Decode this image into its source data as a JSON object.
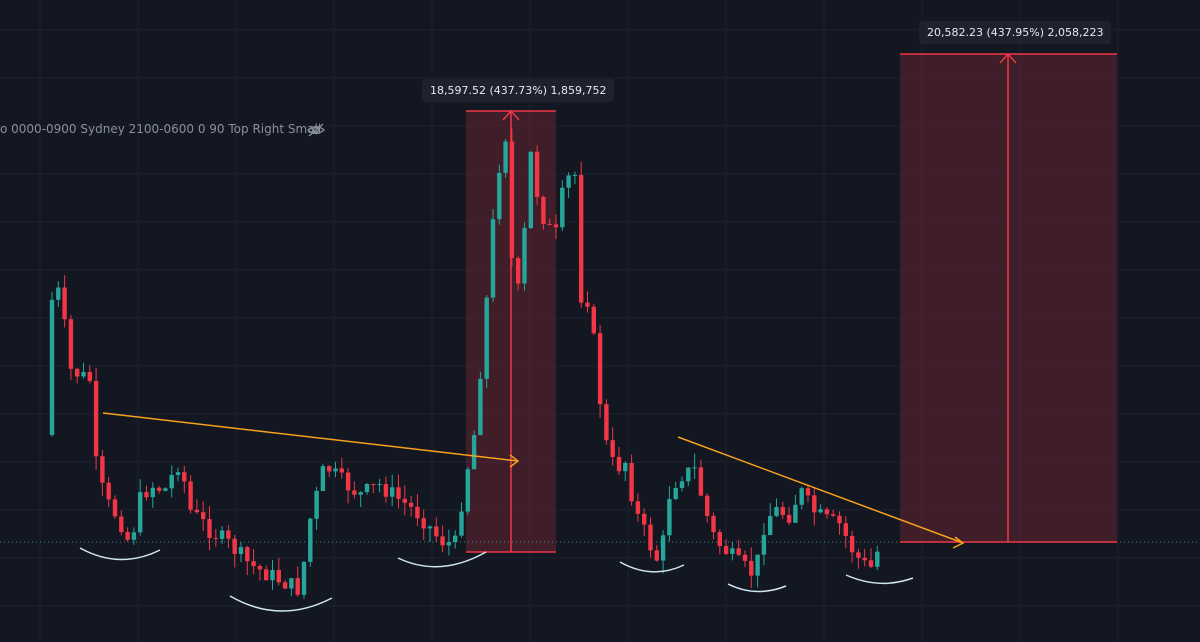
{
  "indicator_legend": {
    "text": "o 0000-0900 Sydney 2100-0600 0 90 Top Right Small"
  },
  "measurements": [
    {
      "label": "18,597.52 (437.73%) 1,859,752"
    },
    {
      "label": "20,582.23 (437.95%) 2,058,223"
    }
  ]
}
